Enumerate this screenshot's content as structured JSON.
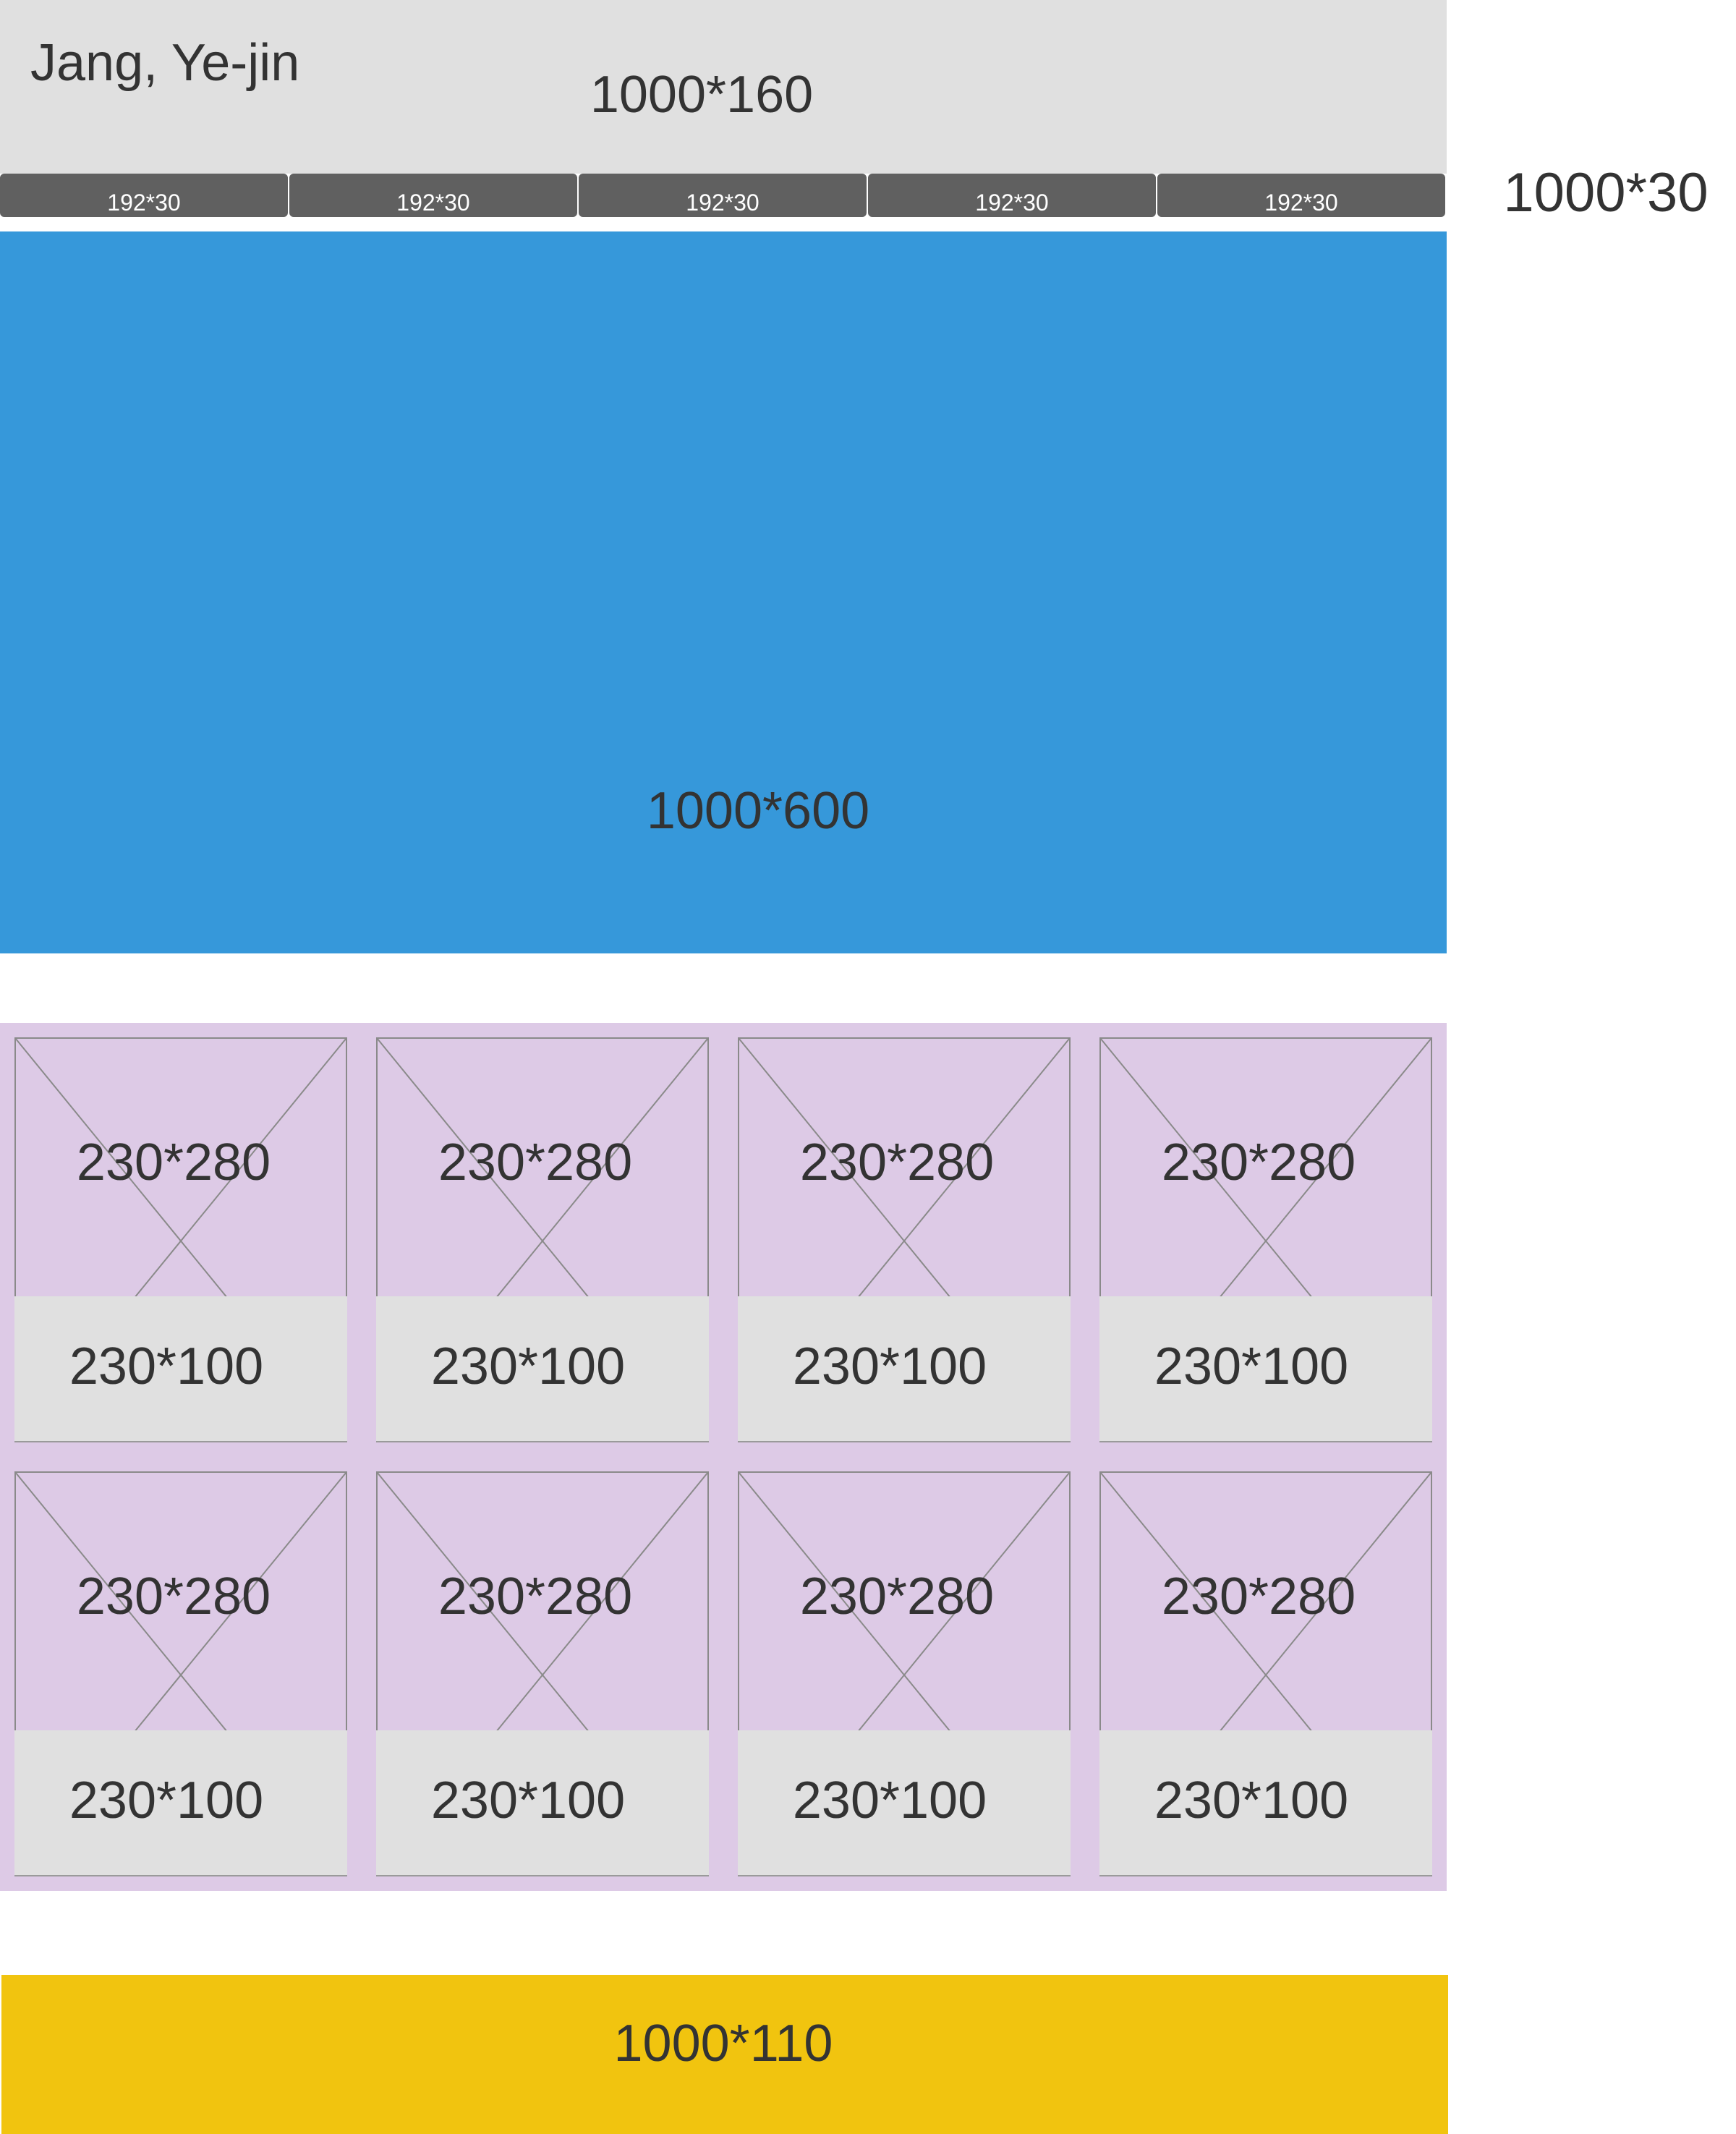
{
  "header": {
    "author": "Jang, Ye-jin",
    "size_label": "1000*160"
  },
  "nav": {
    "size_label": "1000*30",
    "items": [
      {
        "label": "192*30"
      },
      {
        "label": "192*30"
      },
      {
        "label": "192*30"
      },
      {
        "label": "192*30"
      },
      {
        "label": "192*30"
      }
    ]
  },
  "banner": {
    "size_label": "1000*600"
  },
  "products": {
    "items": [
      {
        "image_label": "230*280",
        "caption_label": "230*100"
      },
      {
        "image_label": "230*280",
        "caption_label": "230*100"
      },
      {
        "image_label": "230*280",
        "caption_label": "230*100"
      },
      {
        "image_label": "230*280",
        "caption_label": "230*100"
      },
      {
        "image_label": "230*280",
        "caption_label": "230*100"
      },
      {
        "image_label": "230*280",
        "caption_label": "230*100"
      },
      {
        "image_label": "230*280",
        "caption_label": "230*100"
      },
      {
        "image_label": "230*280",
        "caption_label": "230*100"
      }
    ]
  },
  "footer": {
    "size_label": "1000*110"
  },
  "colors": {
    "header": "#e0e0e0",
    "nav": "#606060",
    "banner": "#3698da",
    "products": "#ddcae6",
    "caption": "#e0e0e0",
    "footer": "#f1c40f"
  }
}
